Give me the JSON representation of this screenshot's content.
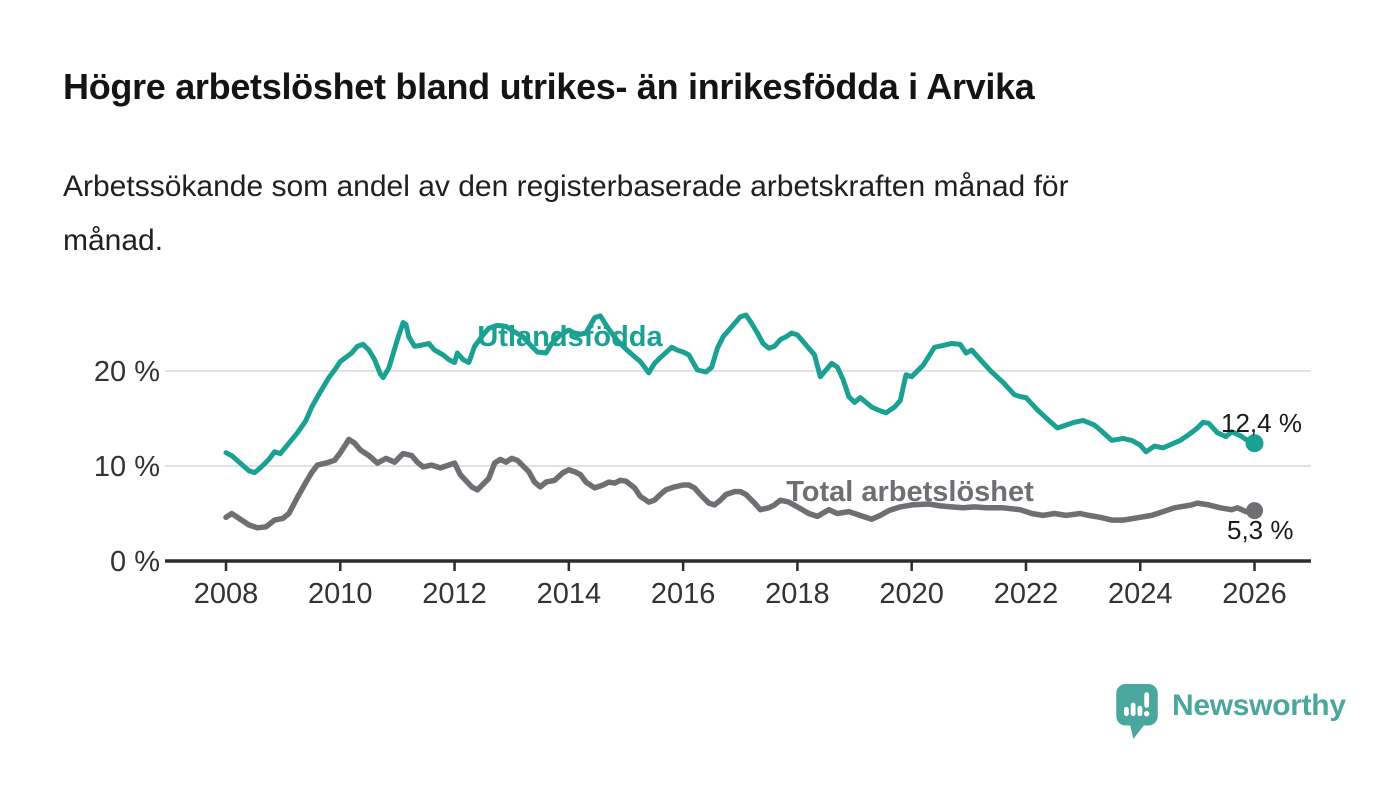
{
  "title": "Högre arbetslöshet bland utrikes- än inrikesfödda i Arvika",
  "subtitle": "Arbetssökande som andel av den registerbaserade arbetskraften månad för månad.",
  "colors": {
    "series_foreign_born": "#1aa193",
    "series_total": "#6e6e73",
    "gridline": "#d9d9d9",
    "axis": "#2d2d2d",
    "axis_text": "#333333",
    "annotation_text": "#1a1a1a",
    "logo": "#4aa79e"
  },
  "branding": {
    "logo_text": "Newsworthy",
    "logo_icon": "speech-bubble-bar-chart"
  },
  "chart_data": {
    "type": "line",
    "title": "Högre arbetslöshet bland utrikes- än inrikesfödda i Arvika",
    "subtitle": "Arbetssökande som andel av den registerbaserade arbetskraften månad för månad.",
    "grid": "horizontal",
    "legend_position": "inline-labels",
    "xlim": [
      2007.2,
      2027.0
    ],
    "ylim": [
      0,
      27.5
    ],
    "x_ticks": [
      {
        "value": 2008,
        "label": "2008"
      },
      {
        "value": 2010,
        "label": "2010"
      },
      {
        "value": 2012,
        "label": "2012"
      },
      {
        "value": 2014,
        "label": "2014"
      },
      {
        "value": 2016,
        "label": "2016"
      },
      {
        "value": 2018,
        "label": "2018"
      },
      {
        "value": 2020,
        "label": "2020"
      },
      {
        "value": 2022,
        "label": "2022"
      },
      {
        "value": 2024,
        "label": "2024"
      },
      {
        "value": 2026,
        "label": "2026"
      }
    ],
    "y_ticks": [
      {
        "value": 0,
        "label": "0 %"
      },
      {
        "value": 10,
        "label": "10 %"
      },
      {
        "value": 20,
        "label": "20 %"
      }
    ],
    "y_gridlines": [
      10,
      20
    ],
    "series": [
      {
        "name": "Utlandsfödda",
        "color": "#1aa193",
        "end_label": "12,4 %",
        "end_value": 12.4,
        "points": [
          [
            2008.0,
            11.4
          ],
          [
            2008.1,
            11.1
          ],
          [
            2008.25,
            10.3
          ],
          [
            2008.4,
            9.5
          ],
          [
            2008.5,
            9.3
          ],
          [
            2008.6,
            9.8
          ],
          [
            2008.75,
            10.7
          ],
          [
            2008.85,
            11.5
          ],
          [
            2008.95,
            11.3
          ],
          [
            2009.1,
            12.4
          ],
          [
            2009.25,
            13.5
          ],
          [
            2009.4,
            14.8
          ],
          [
            2009.5,
            16.2
          ],
          [
            2009.65,
            17.8
          ],
          [
            2009.8,
            19.3
          ],
          [
            2009.9,
            20.1
          ],
          [
            2010.0,
            21.0
          ],
          [
            2010.2,
            21.9
          ],
          [
            2010.3,
            22.6
          ],
          [
            2010.4,
            22.8
          ],
          [
            2010.5,
            22.2
          ],
          [
            2010.6,
            21.2
          ],
          [
            2010.7,
            19.7
          ],
          [
            2010.75,
            19.3
          ],
          [
            2010.85,
            20.3
          ],
          [
            2011.0,
            23.3
          ],
          [
            2011.1,
            25.1
          ],
          [
            2011.15,
            24.9
          ],
          [
            2011.2,
            23.6
          ],
          [
            2011.3,
            22.6
          ],
          [
            2011.4,
            22.7
          ],
          [
            2011.55,
            22.9
          ],
          [
            2011.65,
            22.2
          ],
          [
            2011.8,
            21.7
          ],
          [
            2011.9,
            21.2
          ],
          [
            2012.0,
            20.9
          ],
          [
            2012.05,
            21.9
          ],
          [
            2012.15,
            21.2
          ],
          [
            2012.25,
            20.9
          ],
          [
            2012.35,
            22.6
          ],
          [
            2012.5,
            23.8
          ],
          [
            2012.6,
            24.5
          ],
          [
            2012.75,
            24.8
          ],
          [
            2012.9,
            24.7
          ],
          [
            2013.05,
            24.1
          ],
          [
            2013.2,
            23.6
          ],
          [
            2013.35,
            22.6
          ],
          [
            2013.45,
            22.0
          ],
          [
            2013.6,
            21.9
          ],
          [
            2013.7,
            22.9
          ],
          [
            2013.85,
            23.8
          ],
          [
            2014.0,
            24.3
          ],
          [
            2014.15,
            23.8
          ],
          [
            2014.3,
            24.0
          ],
          [
            2014.45,
            25.6
          ],
          [
            2014.55,
            25.8
          ],
          [
            2014.7,
            24.4
          ],
          [
            2014.85,
            23.2
          ],
          [
            2015.0,
            22.3
          ],
          [
            2015.15,
            21.5
          ],
          [
            2015.25,
            21.0
          ],
          [
            2015.4,
            19.8
          ],
          [
            2015.5,
            20.8
          ],
          [
            2015.6,
            21.4
          ],
          [
            2015.8,
            22.5
          ],
          [
            2015.9,
            22.2
          ],
          [
            2016.0,
            22.0
          ],
          [
            2016.1,
            21.7
          ],
          [
            2016.25,
            20.1
          ],
          [
            2016.4,
            19.9
          ],
          [
            2016.5,
            20.4
          ],
          [
            2016.6,
            22.4
          ],
          [
            2016.7,
            23.6
          ],
          [
            2016.8,
            24.3
          ],
          [
            2016.9,
            25.0
          ],
          [
            2017.0,
            25.7
          ],
          [
            2017.1,
            25.9
          ],
          [
            2017.2,
            25.0
          ],
          [
            2017.3,
            24.0
          ],
          [
            2017.4,
            22.9
          ],
          [
            2017.5,
            22.4
          ],
          [
            2017.6,
            22.6
          ],
          [
            2017.7,
            23.3
          ],
          [
            2017.8,
            23.6
          ],
          [
            2017.9,
            24.0
          ],
          [
            2018.0,
            23.8
          ],
          [
            2018.1,
            23.1
          ],
          [
            2018.2,
            22.4
          ],
          [
            2018.3,
            21.7
          ],
          [
            2018.4,
            19.4
          ],
          [
            2018.5,
            20.1
          ],
          [
            2018.6,
            20.8
          ],
          [
            2018.7,
            20.4
          ],
          [
            2018.8,
            19.1
          ],
          [
            2018.9,
            17.3
          ],
          [
            2019.0,
            16.7
          ],
          [
            2019.1,
            17.2
          ],
          [
            2019.2,
            16.7
          ],
          [
            2019.3,
            16.2
          ],
          [
            2019.45,
            15.8
          ],
          [
            2019.55,
            15.6
          ],
          [
            2019.7,
            16.2
          ],
          [
            2019.8,
            16.9
          ],
          [
            2019.9,
            19.6
          ],
          [
            2020.0,
            19.4
          ],
          [
            2020.2,
            20.6
          ],
          [
            2020.4,
            22.5
          ],
          [
            2020.55,
            22.7
          ],
          [
            2020.7,
            22.9
          ],
          [
            2020.85,
            22.8
          ],
          [
            2020.95,
            21.9
          ],
          [
            2021.05,
            22.2
          ],
          [
            2021.2,
            21.2
          ],
          [
            2021.4,
            19.9
          ],
          [
            2021.6,
            18.8
          ],
          [
            2021.8,
            17.5
          ],
          [
            2021.9,
            17.3
          ],
          [
            2022.0,
            17.2
          ],
          [
            2022.2,
            15.9
          ],
          [
            2022.4,
            14.8
          ],
          [
            2022.55,
            14.0
          ],
          [
            2022.7,
            14.3
          ],
          [
            2022.85,
            14.6
          ],
          [
            2023.0,
            14.8
          ],
          [
            2023.2,
            14.3
          ],
          [
            2023.3,
            13.8
          ],
          [
            2023.5,
            12.7
          ],
          [
            2023.7,
            12.9
          ],
          [
            2023.85,
            12.7
          ],
          [
            2024.0,
            12.2
          ],
          [
            2024.1,
            11.5
          ],
          [
            2024.25,
            12.1
          ],
          [
            2024.4,
            11.9
          ],
          [
            2024.55,
            12.3
          ],
          [
            2024.7,
            12.7
          ],
          [
            2024.85,
            13.3
          ],
          [
            2025.0,
            14.0
          ],
          [
            2025.1,
            14.6
          ],
          [
            2025.2,
            14.5
          ],
          [
            2025.35,
            13.5
          ],
          [
            2025.5,
            13.1
          ],
          [
            2025.6,
            13.6
          ],
          [
            2025.75,
            13.2
          ],
          [
            2025.85,
            12.8
          ],
          [
            2026.0,
            12.4
          ]
        ]
      },
      {
        "name": "Total arbetslöshet",
        "color": "#6e6e73",
        "end_label": "5,3 %",
        "end_value": 5.3,
        "points": [
          [
            2008.0,
            4.6
          ],
          [
            2008.1,
            5.0
          ],
          [
            2008.25,
            4.4
          ],
          [
            2008.4,
            3.8
          ],
          [
            2008.55,
            3.5
          ],
          [
            2008.7,
            3.6
          ],
          [
            2008.85,
            4.3
          ],
          [
            2009.0,
            4.5
          ],
          [
            2009.1,
            5.0
          ],
          [
            2009.25,
            6.7
          ],
          [
            2009.4,
            8.3
          ],
          [
            2009.5,
            9.3
          ],
          [
            2009.6,
            10.1
          ],
          [
            2009.75,
            10.3
          ],
          [
            2009.9,
            10.6
          ],
          [
            2010.0,
            11.4
          ],
          [
            2010.15,
            12.8
          ],
          [
            2010.25,
            12.4
          ],
          [
            2010.35,
            11.7
          ],
          [
            2010.5,
            11.1
          ],
          [
            2010.65,
            10.3
          ],
          [
            2010.8,
            10.8
          ],
          [
            2010.95,
            10.4
          ],
          [
            2011.1,
            11.3
          ],
          [
            2011.25,
            11.1
          ],
          [
            2011.35,
            10.4
          ],
          [
            2011.45,
            9.9
          ],
          [
            2011.6,
            10.1
          ],
          [
            2011.75,
            9.8
          ],
          [
            2011.85,
            10.0
          ],
          [
            2012.0,
            10.3
          ],
          [
            2012.1,
            9.1
          ],
          [
            2012.3,
            7.8
          ],
          [
            2012.4,
            7.5
          ],
          [
            2012.6,
            8.7
          ],
          [
            2012.7,
            10.3
          ],
          [
            2012.8,
            10.7
          ],
          [
            2012.9,
            10.4
          ],
          [
            2013.0,
            10.8
          ],
          [
            2013.1,
            10.6
          ],
          [
            2013.3,
            9.4
          ],
          [
            2013.4,
            8.3
          ],
          [
            2013.5,
            7.8
          ],
          [
            2013.6,
            8.3
          ],
          [
            2013.75,
            8.5
          ],
          [
            2013.9,
            9.3
          ],
          [
            2014.0,
            9.6
          ],
          [
            2014.1,
            9.4
          ],
          [
            2014.2,
            9.1
          ],
          [
            2014.3,
            8.3
          ],
          [
            2014.45,
            7.7
          ],
          [
            2014.6,
            8.0
          ],
          [
            2014.7,
            8.3
          ],
          [
            2014.8,
            8.2
          ],
          [
            2014.9,
            8.5
          ],
          [
            2015.0,
            8.4
          ],
          [
            2015.15,
            7.7
          ],
          [
            2015.25,
            6.8
          ],
          [
            2015.4,
            6.2
          ],
          [
            2015.5,
            6.4
          ],
          [
            2015.6,
            7.0
          ],
          [
            2015.7,
            7.5
          ],
          [
            2015.85,
            7.8
          ],
          [
            2016.0,
            8.0
          ],
          [
            2016.1,
            8.0
          ],
          [
            2016.2,
            7.7
          ],
          [
            2016.3,
            7.0
          ],
          [
            2016.45,
            6.1
          ],
          [
            2016.55,
            5.9
          ],
          [
            2016.65,
            6.4
          ],
          [
            2016.75,
            7.0
          ],
          [
            2016.9,
            7.3
          ],
          [
            2017.0,
            7.3
          ],
          [
            2017.1,
            7.0
          ],
          [
            2017.25,
            6.1
          ],
          [
            2017.35,
            5.4
          ],
          [
            2017.5,
            5.6
          ],
          [
            2017.6,
            5.9
          ],
          [
            2017.7,
            6.4
          ],
          [
            2017.85,
            6.2
          ],
          [
            2018.0,
            5.7
          ],
          [
            2018.2,
            5.0
          ],
          [
            2018.35,
            4.7
          ],
          [
            2018.55,
            5.4
          ],
          [
            2018.7,
            5.0
          ],
          [
            2018.9,
            5.2
          ],
          [
            2019.05,
            4.9
          ],
          [
            2019.3,
            4.4
          ],
          [
            2019.45,
            4.8
          ],
          [
            2019.6,
            5.3
          ],
          [
            2019.8,
            5.7
          ],
          [
            2020.0,
            5.9
          ],
          [
            2020.3,
            6.0
          ],
          [
            2020.5,
            5.8
          ],
          [
            2020.7,
            5.7
          ],
          [
            2020.9,
            5.6
          ],
          [
            2021.1,
            5.7
          ],
          [
            2021.3,
            5.6
          ],
          [
            2021.6,
            5.6
          ],
          [
            2021.9,
            5.4
          ],
          [
            2022.1,
            5.0
          ],
          [
            2022.3,
            4.8
          ],
          [
            2022.5,
            5.0
          ],
          [
            2022.7,
            4.8
          ],
          [
            2022.95,
            5.0
          ],
          [
            2023.1,
            4.8
          ],
          [
            2023.3,
            4.6
          ],
          [
            2023.5,
            4.3
          ],
          [
            2023.7,
            4.3
          ],
          [
            2024.0,
            4.6
          ],
          [
            2024.2,
            4.8
          ],
          [
            2024.4,
            5.2
          ],
          [
            2024.6,
            5.6
          ],
          [
            2024.9,
            5.9
          ],
          [
            2025.0,
            6.1
          ],
          [
            2025.2,
            5.9
          ],
          [
            2025.4,
            5.6
          ],
          [
            2025.6,
            5.4
          ],
          [
            2025.7,
            5.6
          ],
          [
            2025.85,
            5.2
          ],
          [
            2026.0,
            5.3
          ]
        ]
      }
    ]
  }
}
